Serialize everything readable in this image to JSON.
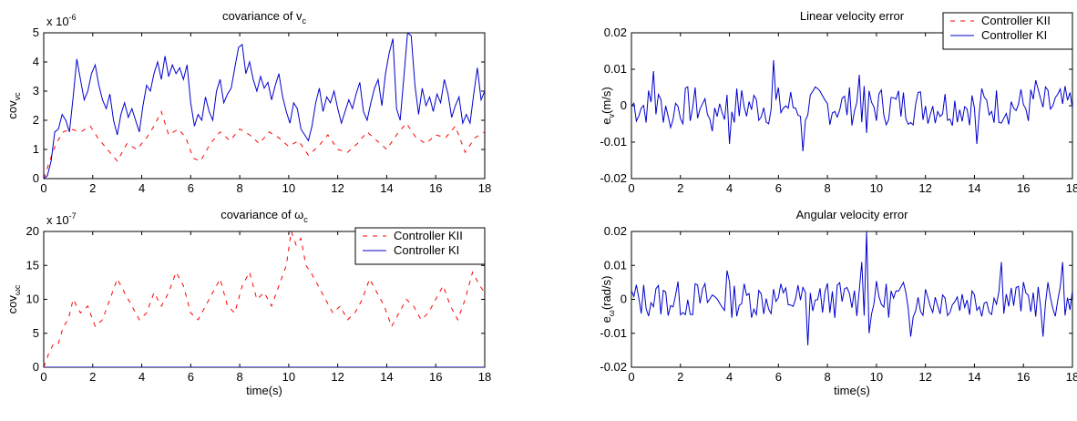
{
  "colors": {
    "kii": "#ff0000",
    "ki": "#0000cc",
    "axes": "#000000"
  },
  "chart_data": [
    {
      "id": "cov_v",
      "type": "line",
      "title": {
        "main": "covariance of v",
        "sub": "c"
      },
      "ylabel": {
        "main": "cov",
        "sub": "vc"
      },
      "xlabel": "",
      "exponent": {
        "base": "x 10",
        "exp": "-6"
      },
      "xlim": [
        0,
        18
      ],
      "ylim": [
        0,
        5
      ],
      "xticks": [
        "0",
        "2",
        "4",
        "6",
        "8",
        "10",
        "12",
        "14",
        "16",
        "18"
      ],
      "yticks": [
        "0",
        "1",
        "2",
        "3",
        "4",
        "5"
      ],
      "legend": null,
      "series": [
        {
          "name": "Controller KII",
          "style": "dashed",
          "color": "#ff0000",
          "x": [
            0,
            0.2,
            0.5,
            0.8,
            1.1,
            1.5,
            1.9,
            2.2,
            2.6,
            3.0,
            3.4,
            3.8,
            4.2,
            4.5,
            4.8,
            5.1,
            5.5,
            5.8,
            6.1,
            6.4,
            6.8,
            7.2,
            7.6,
            8.0,
            8.4,
            8.8,
            9.2,
            9.6,
            10.0,
            10.4,
            10.8,
            11.2,
            11.6,
            12.0,
            12.4,
            12.8,
            13.2,
            13.6,
            14.0,
            14.4,
            14.8,
            15.2,
            15.6,
            16.0,
            16.4,
            16.8,
            17.2,
            17.6,
            18.0
          ],
          "y": [
            0,
            0.5,
            1.2,
            1.6,
            1.7,
            1.6,
            1.8,
            1.4,
            1.0,
            0.6,
            1.2,
            1.0,
            1.4,
            1.8,
            2.3,
            1.5,
            1.7,
            1.4,
            0.7,
            0.6,
            1.2,
            1.6,
            1.3,
            1.7,
            1.5,
            1.2,
            1.6,
            1.4,
            1.1,
            1.3,
            0.8,
            1.1,
            1.5,
            1.0,
            0.9,
            1.2,
            1.6,
            1.3,
            1.0,
            1.5,
            1.9,
            1.4,
            1.2,
            1.5,
            1.4,
            1.8,
            0.9,
            1.4,
            1.6
          ]
        },
        {
          "name": "Controller KI",
          "style": "solid",
          "color": "#0000cc",
          "x": [
            0,
            0.15,
            0.3,
            0.45,
            0.6,
            0.75,
            0.9,
            1.05,
            1.2,
            1.35,
            1.5,
            1.65,
            1.8,
            1.95,
            2.1,
            2.25,
            2.4,
            2.55,
            2.7,
            2.85,
            3.0,
            3.15,
            3.3,
            3.45,
            3.6,
            3.75,
            3.9,
            4.05,
            4.2,
            4.35,
            4.5,
            4.65,
            4.8,
            4.95,
            5.1,
            5.25,
            5.4,
            5.55,
            5.7,
            5.85,
            6.0,
            6.15,
            6.3,
            6.45,
            6.6,
            6.75,
            6.9,
            7.05,
            7.2,
            7.35,
            7.5,
            7.65,
            7.8,
            7.95,
            8.1,
            8.25,
            8.4,
            8.55,
            8.7,
            8.85,
            9.0,
            9.15,
            9.3,
            9.45,
            9.6,
            9.75,
            9.9,
            10.05,
            10.2,
            10.35,
            10.5,
            10.65,
            10.8,
            10.95,
            11.1,
            11.25,
            11.4,
            11.55,
            11.7,
            11.85,
            12.0,
            12.15,
            12.3,
            12.45,
            12.6,
            12.75,
            12.9,
            13.05,
            13.2,
            13.35,
            13.5,
            13.65,
            13.8,
            13.95,
            14.1,
            14.25,
            14.4,
            14.55,
            14.7,
            14.85,
            15.0,
            15.15,
            15.3,
            15.45,
            15.6,
            15.75,
            15.9,
            16.05,
            16.2,
            16.35,
            16.5,
            16.65,
            16.8,
            16.95,
            17.1,
            17.25,
            17.4,
            17.55,
            17.7,
            17.85,
            18.0
          ],
          "y": [
            0,
            0.1,
            0.6,
            1.6,
            1.7,
            2.2,
            2.0,
            1.6,
            2.8,
            4.1,
            3.4,
            2.7,
            3.0,
            3.6,
            3.9,
            3.2,
            2.7,
            2.4,
            2.9,
            2.0,
            1.5,
            2.2,
            2.6,
            2.1,
            2.4,
            2.0,
            1.6,
            2.5,
            3.2,
            3.0,
            3.6,
            4.0,
            3.4,
            4.2,
            3.5,
            3.9,
            3.6,
            3.8,
            3.4,
            3.9,
            2.6,
            1.8,
            2.2,
            2.0,
            2.8,
            2.3,
            2.0,
            3.0,
            3.4,
            2.6,
            2.9,
            3.1,
            3.8,
            4.5,
            4.6,
            3.6,
            4.0,
            3.4,
            3.0,
            3.5,
            3.1,
            3.3,
            2.7,
            3.2,
            3.6,
            2.8,
            2.3,
            1.9,
            2.6,
            2.4,
            1.7,
            1.5,
            1.3,
            1.8,
            2.6,
            3.1,
            2.3,
            2.8,
            2.6,
            3.0,
            2.4,
            1.9,
            2.3,
            2.7,
            2.4,
            2.9,
            3.3,
            2.3,
            2.0,
            2.6,
            3.1,
            3.4,
            2.5,
            3.6,
            4.3,
            4.8,
            2.4,
            2.0,
            3.5,
            5.0,
            4.9,
            3.2,
            2.2,
            3.1,
            2.5,
            2.8,
            2.3,
            2.9,
            2.6,
            3.4,
            2.9,
            2.1,
            2.5,
            2.8,
            1.9,
            2.2,
            1.9,
            2.9,
            3.8,
            2.7,
            3.0
          ]
        }
      ]
    },
    {
      "id": "cov_w",
      "type": "line",
      "title": {
        "main": "covariance of ω",
        "sub": "c"
      },
      "ylabel": {
        "main": "cov",
        "sub": "ωc"
      },
      "xlabel": "time(s)",
      "exponent": {
        "base": "x 10",
        "exp": "-7"
      },
      "xlim": [
        0,
        18
      ],
      "ylim": [
        0,
        20
      ],
      "xticks": [
        "0",
        "2",
        "4",
        "6",
        "8",
        "10",
        "12",
        "14",
        "16",
        "18"
      ],
      "yticks": [
        "0",
        "5",
        "10",
        "15",
        "20"
      ],
      "legend": {
        "position": "top-right",
        "entries": [
          "Controller KII",
          "Controller KI"
        ]
      },
      "series": [
        {
          "name": "Controller KII",
          "style": "dashed",
          "color": "#ff0000",
          "x": [
            0,
            0.2,
            0.4,
            0.6,
            0.8,
            1.0,
            1.2,
            1.5,
            1.8,
            2.1,
            2.4,
            2.7,
            3.0,
            3.3,
            3.6,
            3.9,
            4.2,
            4.5,
            4.8,
            5.1,
            5.4,
            5.7,
            6.0,
            6.3,
            6.6,
            6.9,
            7.2,
            7.5,
            7.8,
            8.1,
            8.4,
            8.7,
            9.0,
            9.3,
            9.6,
            9.9,
            10.1,
            10.3,
            10.5,
            10.7,
            10.9,
            11.2,
            11.5,
            11.8,
            12.1,
            12.4,
            12.7,
            13.0,
            13.3,
            13.6,
            13.9,
            14.2,
            14.5,
            14.8,
            15.1,
            15.4,
            15.7,
            16.0,
            16.3,
            16.6,
            16.9,
            17.2,
            17.5,
            17.8,
            18.0
          ],
          "y": [
            0,
            2,
            3.5,
            3.5,
            6,
            7,
            10,
            8,
            9,
            6,
            7,
            10,
            13,
            11,
            9,
            7,
            8,
            11,
            9,
            11,
            14,
            12,
            8,
            7,
            9,
            11,
            13,
            9,
            8,
            12,
            14,
            10,
            11,
            9,
            12,
            15,
            20,
            18,
            19,
            15,
            14,
            12,
            10,
            8,
            9,
            7,
            8,
            10,
            13,
            11,
            9,
            6,
            8,
            10,
            9,
            7,
            8,
            10,
            12,
            9,
            7,
            10,
            14,
            12,
            11
          ]
        },
        {
          "name": "Controller KI",
          "style": "solid",
          "color": "#0000cc",
          "x": [
            0,
            18
          ],
          "y": [
            0,
            0
          ]
        }
      ]
    },
    {
      "id": "lin_err",
      "type": "line",
      "title": {
        "main": "Linear velocity error",
        "sub": ""
      },
      "ylabel": {
        "main": "e",
        "sub": "v",
        "unit": "(m/s)"
      },
      "xlabel": "",
      "exponent": null,
      "xlim": [
        0,
        18
      ],
      "ylim": [
        -0.02,
        0.02
      ],
      "xticks": [
        "0",
        "2",
        "4",
        "6",
        "8",
        "10",
        "12",
        "14",
        "16",
        "18"
      ],
      "yticks": [
        "-0.02",
        "-0.01",
        "0",
        "0.01",
        "0.02"
      ],
      "legend": {
        "position": "top-right",
        "entries": [
          "Controller KII",
          "Controller KI"
        ]
      },
      "series": [
        {
          "name": "Controller KII",
          "style": "dashed",
          "color": "#ff0000",
          "x": [],
          "y": []
        },
        {
          "name": "Controller KI",
          "style": "solid",
          "color": "#0000cc",
          "seed": 7,
          "n": 181,
          "amp": 0.0055,
          "spikes": [
            [
              0.9,
              0.0095
            ],
            [
              1.6,
              -0.006
            ],
            [
              3.3,
              -0.007
            ],
            [
              4.0,
              -0.0105
            ],
            [
              5.8,
              0.0125
            ],
            [
              7.0,
              -0.0125
            ],
            [
              9.3,
              0.0085
            ],
            [
              9.6,
              -0.0075
            ],
            [
              14.1,
              -0.0105
            ],
            [
              16.5,
              0.007
            ]
          ]
        }
      ]
    },
    {
      "id": "ang_err",
      "type": "line",
      "title": {
        "main": "Angular velocity error",
        "sub": ""
      },
      "ylabel": {
        "main": "e",
        "sub": "ω",
        "unit": "(rad/s)"
      },
      "xlabel": "time(s)",
      "exponent": null,
      "xlim": [
        0,
        18
      ],
      "ylim": [
        -0.02,
        0.02
      ],
      "xticks": [
        "0",
        "2",
        "4",
        "6",
        "8",
        "10",
        "12",
        "14",
        "16",
        "18"
      ],
      "yticks": [
        "-0.02",
        "-0.01",
        "0",
        "0.01",
        "0.02"
      ],
      "legend": null,
      "series": [
        {
          "name": "Controller KI",
          "style": "solid",
          "color": "#0000cc",
          "seed": 13,
          "n": 181,
          "amp": 0.0055,
          "spikes": [
            [
              3.9,
              0.0085
            ],
            [
              7.2,
              -0.0135
            ],
            [
              9.4,
              0.011
            ],
            [
              9.6,
              0.02
            ],
            [
              9.7,
              -0.01
            ],
            [
              11.4,
              -0.011
            ],
            [
              15.1,
              0.011
            ],
            [
              16.8,
              -0.011
            ],
            [
              17.6,
              0.011
            ]
          ]
        }
      ]
    }
  ]
}
